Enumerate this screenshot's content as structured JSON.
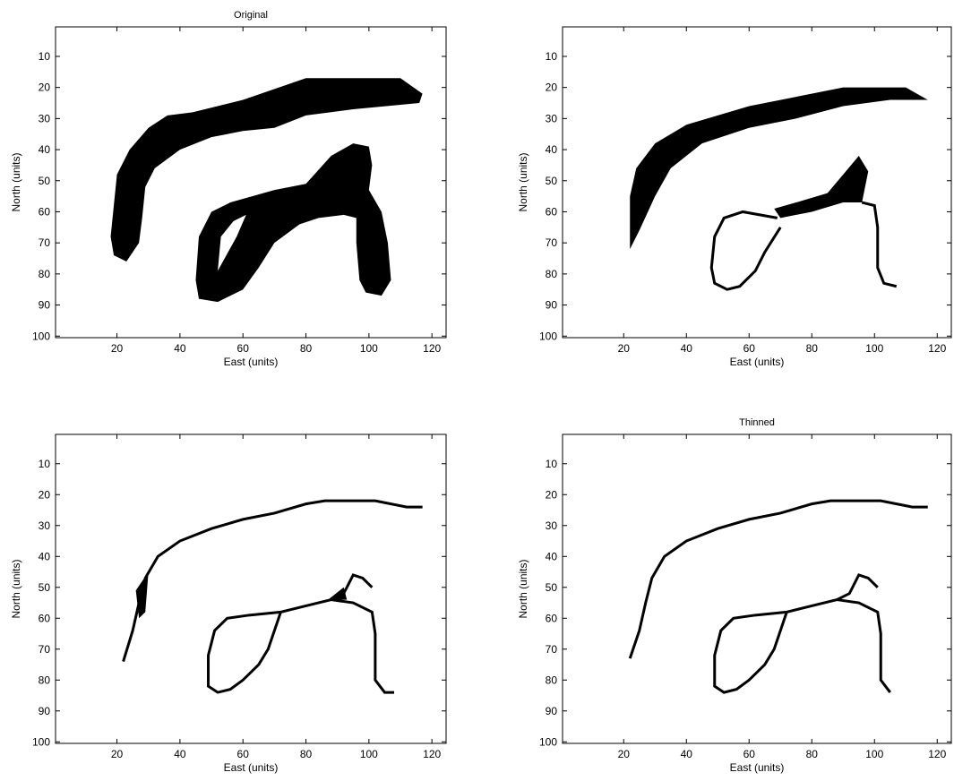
{
  "chart_data": [
    {
      "type": "image",
      "title": "Original",
      "xlabel": "East (units)",
      "ylabel": "North (units)",
      "xlim": [
        0.5,
        124.5
      ],
      "ylim": [
        0.5,
        100.5
      ],
      "xticks": [
        20,
        40,
        60,
        80,
        100,
        120
      ],
      "yticks": [
        10,
        20,
        30,
        40,
        50,
        60,
        70,
        80,
        90,
        100
      ]
    },
    {
      "type": "image",
      "xlabel": "East (units)",
      "ylabel": "North (units)",
      "xlim": [
        0.5,
        124.5
      ],
      "ylim": [
        0.5,
        100.5
      ],
      "xticks": [
        20,
        40,
        60,
        80,
        100,
        120
      ],
      "yticks": [
        10,
        20,
        30,
        40,
        50,
        60,
        70,
        80,
        90,
        100
      ]
    },
    {
      "type": "image",
      "xlabel": "East (units)",
      "ylabel": "North (units)",
      "xlim": [
        0.5,
        124.5
      ],
      "ylim": [
        0.5,
        100.5
      ],
      "xticks": [
        20,
        40,
        60,
        80,
        100,
        120
      ],
      "yticks": [
        10,
        20,
        30,
        40,
        50,
        60,
        70,
        80,
        90,
        100
      ]
    },
    {
      "type": "image",
      "title": "Thinned",
      "xlabel": "East (units)",
      "ylabel": "North (units)",
      "xlim": [
        0.5,
        124.5
      ],
      "ylim": [
        0.5,
        100.5
      ],
      "xticks": [
        20,
        40,
        60,
        80,
        100,
        120
      ],
      "yticks": [
        10,
        20,
        30,
        40,
        50,
        60,
        70,
        80,
        90,
        100
      ]
    }
  ]
}
